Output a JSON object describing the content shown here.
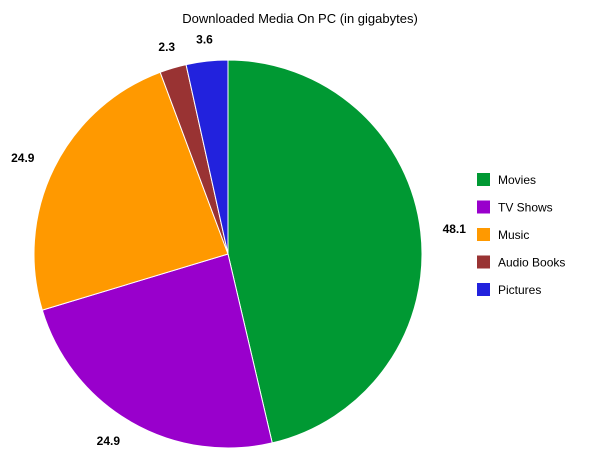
{
  "chart_data": {
    "type": "pie",
    "title": "Downloaded Media On PC (in gigabytes)",
    "slices": [
      {
        "label": "Movies",
        "value": 48.1,
        "display": "48.1",
        "color": "#009933"
      },
      {
        "label": "TV Shows",
        "value": 24.9,
        "display": "24.9",
        "color": "#9900cc"
      },
      {
        "label": "Music",
        "value": 24.9,
        "display": "24.9",
        "color": "#ff9900"
      },
      {
        "label": "Audio Books",
        "value": 2.3,
        "display": "2.3",
        "color": "#993333"
      },
      {
        "label": "Pictures",
        "value": 3.6,
        "display": "3.6",
        "color": "#2222dd"
      }
    ],
    "start_angle_deg": 0,
    "direction": "clockwise",
    "legend_position": "right"
  }
}
